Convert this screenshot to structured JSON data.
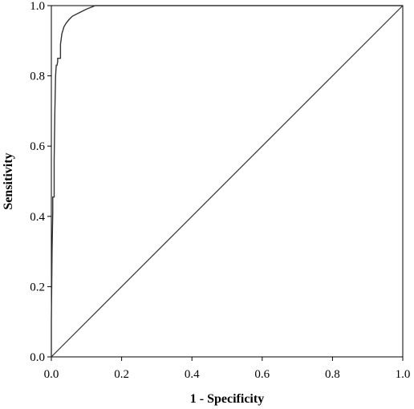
{
  "chart_data": {
    "type": "line",
    "title": "",
    "xlabel": "1 - Specificity",
    "ylabel": "Sensitivity",
    "xlim": [
      0,
      1
    ],
    "ylim": [
      0,
      1
    ],
    "xticks": [
      "0.0",
      "0.2",
      "0.4",
      "0.6",
      "0.8",
      "1.0"
    ],
    "yticks": [
      "0.0",
      "0.2",
      "0.4",
      "0.6",
      "0.8",
      "1.0"
    ],
    "grid": false,
    "legend": "none",
    "series": [
      {
        "role": "roc-curve",
        "color": "#333333",
        "x": [
          0.0,
          0.0,
          0.002,
          0.004,
          0.004,
          0.008,
          0.008,
          0.01,
          0.012,
          0.014,
          0.016,
          0.018,
          0.018,
          0.026,
          0.026,
          0.03,
          0.036,
          0.042,
          0.05,
          0.06,
          0.08,
          0.1,
          0.125,
          0.2,
          0.4,
          0.6,
          0.8,
          1.0
        ],
        "y": [
          0.0,
          0.1,
          0.3,
          0.41,
          0.455,
          0.455,
          0.56,
          0.7,
          0.8,
          0.83,
          0.83,
          0.84,
          0.85,
          0.85,
          0.89,
          0.92,
          0.94,
          0.95,
          0.96,
          0.97,
          0.98,
          0.99,
          1.0,
          1.0,
          1.0,
          1.0,
          1.0,
          1.0
        ]
      },
      {
        "role": "reference-line",
        "color": "#333333",
        "x": [
          0,
          1
        ],
        "y": [
          0,
          1
        ]
      }
    ]
  }
}
